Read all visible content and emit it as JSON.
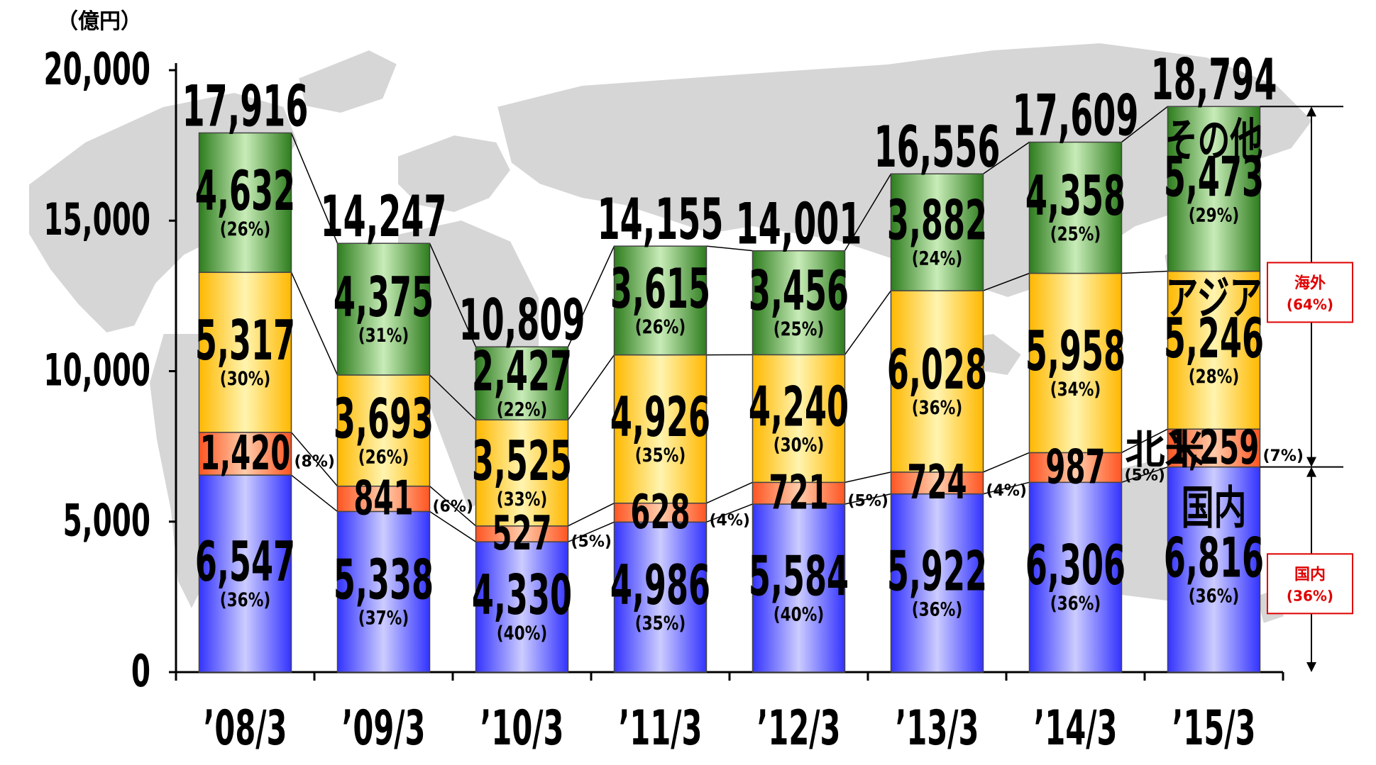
{
  "chart_data": {
    "type": "bar",
    "stacked": true,
    "unit_label": "（億円）",
    "categories": [
      "'08/3",
      "'09/3",
      "'10/3",
      "'11/3",
      "'12/3",
      "'13/3",
      "'14/3",
      "'15/3"
    ],
    "category_labels": [
      "’08/3",
      "’09/3",
      "’10/3",
      "’11/3",
      "’12/3",
      "’13/3",
      "’14/3",
      "’15/3"
    ],
    "ylim": [
      0,
      20000
    ],
    "yticks": [
      0,
      5000,
      10000,
      15000,
      20000
    ],
    "ytick_labels": [
      "0",
      "5,000",
      "10,000",
      "15,000",
      "20,000"
    ],
    "totals": [
      17916,
      14247,
      10809,
      14155,
      14001,
      16556,
      17609,
      18794
    ],
    "total_labels": [
      "17,916",
      "14,247",
      "10,809",
      "14,155",
      "14,001",
      "16,556",
      "17,609",
      "18,794"
    ],
    "series": [
      {
        "name": "国内",
        "color_top": "#3333ff",
        "color_mid": "#ccccff",
        "values": [
          6547,
          5338,
          4330,
          4986,
          5584,
          5922,
          6306,
          6816
        ],
        "value_labels": [
          "6,547",
          "5,338",
          "4,330",
          "4,986",
          "5,584",
          "5,922",
          "6,306",
          "6,816"
        ],
        "pct_labels": [
          "(36%)",
          "(37%)",
          "(40%)",
          "(35%)",
          "(40%)",
          "(36%)",
          "(36%)",
          "(36%)"
        ]
      },
      {
        "name": "北米",
        "color_top": "#ff5522",
        "color_mid": "#ffccaa",
        "values": [
          1420,
          841,
          527,
          628,
          721,
          724,
          987,
          1259
        ],
        "value_labels": [
          "1,420",
          "841",
          "527",
          "628",
          "721",
          "724",
          "987",
          "1,259"
        ],
        "pct_labels": [
          "(8%)",
          "(6%)",
          "(5%)",
          "(4%)",
          "(5%)",
          "(4%)",
          "(5%)",
          "(7%)"
        ]
      },
      {
        "name": "アジア",
        "color_top": "#ffb800",
        "color_mid": "#fff4b0",
        "values": [
          5317,
          3693,
          3525,
          4926,
          4240,
          6028,
          5958,
          5246
        ],
        "value_labels": [
          "5,317",
          "3,693",
          "3,525",
          "4,926",
          "4,240",
          "6,028",
          "5,958",
          "5,246"
        ],
        "pct_labels": [
          "(30%)",
          "(26%)",
          "(33%)",
          "(35%)",
          "(30%)",
          "(36%)",
          "(34%)",
          "(28%)"
        ]
      },
      {
        "name": "その他",
        "color_top": "#2e7d1e",
        "color_mid": "#c8ecb8",
        "values": [
          4632,
          4375,
          2427,
          3615,
          3456,
          3882,
          4358,
          5473
        ],
        "value_labels": [
          "4,632",
          "4,375",
          "2,427",
          "3,615",
          "3,456",
          "3,882",
          "4,358",
          "5,473"
        ],
        "pct_labels": [
          "(26%)",
          "(31%)",
          "(22%)",
          "(26%)",
          "(25%)",
          "(24%)",
          "(25%)",
          "(29%)"
        ]
      }
    ],
    "bracket_labels": [
      {
        "title": "海外",
        "pct": "(64%)"
      },
      {
        "title": "国内",
        "pct": "(36%)"
      }
    ]
  }
}
